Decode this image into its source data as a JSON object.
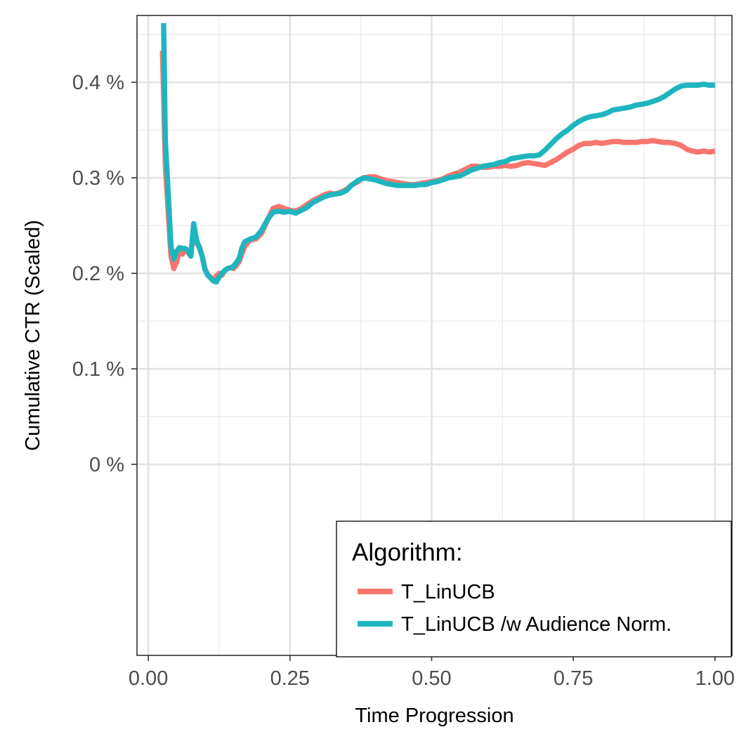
{
  "chart_data": {
    "type": "line",
    "title": "",
    "xlabel": "Time Progression",
    "ylabel": "Cumulative CTR (Scaled)",
    "xlim": [
      -0.02,
      1.03
    ],
    "ylim": [
      -0.002,
      0.0047
    ],
    "x_ticks": [
      0,
      0.25,
      0.5,
      0.75,
      1.0
    ],
    "x_tick_labels": [
      "0.00",
      "0.25",
      "0.50",
      "0.75",
      "1.00"
    ],
    "y_ticks": [
      0,
      0.001,
      0.002,
      0.003,
      0.004
    ],
    "y_tick_labels": [
      "0 %",
      "0.1 %",
      "0.2 %",
      "0.3 %",
      "0.4 %"
    ],
    "grid": true,
    "legend": {
      "title": "Algorithm:",
      "position": "bottom-right"
    },
    "series": [
      {
        "name": "T_LinUCB",
        "color": "#F8766D",
        "x": [
          0.025,
          0.03,
          0.035,
          0.04,
          0.045,
          0.05,
          0.055,
          0.06,
          0.065,
          0.07,
          0.075,
          0.08,
          0.085,
          0.09,
          0.095,
          0.1,
          0.105,
          0.11,
          0.115,
          0.12,
          0.125,
          0.13,
          0.135,
          0.14,
          0.145,
          0.15,
          0.155,
          0.16,
          0.165,
          0.17,
          0.18,
          0.19,
          0.2,
          0.21,
          0.22,
          0.23,
          0.24,
          0.25,
          0.26,
          0.27,
          0.28,
          0.29,
          0.3,
          0.31,
          0.32,
          0.33,
          0.34,
          0.35,
          0.36,
          0.37,
          0.38,
          0.39,
          0.4,
          0.41,
          0.42,
          0.43,
          0.44,
          0.45,
          0.46,
          0.47,
          0.48,
          0.49,
          0.5,
          0.51,
          0.52,
          0.53,
          0.54,
          0.55,
          0.56,
          0.57,
          0.58,
          0.59,
          0.6,
          0.61,
          0.62,
          0.63,
          0.64,
          0.65,
          0.66,
          0.67,
          0.68,
          0.69,
          0.7,
          0.71,
          0.72,
          0.73,
          0.74,
          0.75,
          0.76,
          0.77,
          0.78,
          0.79,
          0.8,
          0.81,
          0.82,
          0.83,
          0.84,
          0.85,
          0.86,
          0.87,
          0.88,
          0.89,
          0.9,
          0.91,
          0.92,
          0.93,
          0.94,
          0.95,
          0.96,
          0.97,
          0.98,
          0.99,
          1.0
        ],
        "values": [
          0.00433,
          0.00315,
          0.00265,
          0.00218,
          0.00205,
          0.00212,
          0.00225,
          0.0022,
          0.00225,
          0.00222,
          0.00218,
          0.00245,
          0.00232,
          0.00228,
          0.00218,
          0.00205,
          0.00198,
          0.00196,
          0.00193,
          0.00197,
          0.002,
          0.00198,
          0.00203,
          0.00205,
          0.00206,
          0.00205,
          0.00208,
          0.00212,
          0.0022,
          0.00228,
          0.00235,
          0.00236,
          0.00242,
          0.00255,
          0.00268,
          0.0027,
          0.00268,
          0.00266,
          0.00265,
          0.00268,
          0.00272,
          0.00276,
          0.00279,
          0.00282,
          0.00284,
          0.00283,
          0.00285,
          0.00288,
          0.00293,
          0.00296,
          0.003,
          0.00301,
          0.00301,
          0.00299,
          0.00297,
          0.00296,
          0.00295,
          0.00294,
          0.00293,
          0.00293,
          0.00294,
          0.00295,
          0.00296,
          0.00297,
          0.00299,
          0.00302,
          0.00304,
          0.00306,
          0.00309,
          0.00312,
          0.00312,
          0.00311,
          0.00311,
          0.00312,
          0.00312,
          0.00313,
          0.00312,
          0.00313,
          0.00315,
          0.00316,
          0.00315,
          0.00314,
          0.00313,
          0.00316,
          0.00319,
          0.00323,
          0.00327,
          0.0033,
          0.00334,
          0.00336,
          0.00336,
          0.00337,
          0.00336,
          0.00337,
          0.00338,
          0.00338,
          0.00337,
          0.00337,
          0.00337,
          0.00338,
          0.00338,
          0.00339,
          0.00338,
          0.00337,
          0.00337,
          0.00336,
          0.00334,
          0.0033,
          0.00328,
          0.00327,
          0.00328,
          0.00327,
          0.00328
        ]
      },
      {
        "name": "T_LinUCB /w Audience Norm.",
        "color": "#1FB5BF",
        "x": [
          0.027,
          0.03,
          0.035,
          0.04,
          0.045,
          0.05,
          0.055,
          0.06,
          0.065,
          0.07,
          0.075,
          0.08,
          0.085,
          0.09,
          0.095,
          0.1,
          0.105,
          0.11,
          0.115,
          0.12,
          0.125,
          0.13,
          0.135,
          0.14,
          0.145,
          0.15,
          0.155,
          0.16,
          0.165,
          0.17,
          0.18,
          0.19,
          0.2,
          0.21,
          0.22,
          0.23,
          0.24,
          0.25,
          0.26,
          0.27,
          0.28,
          0.29,
          0.3,
          0.31,
          0.32,
          0.33,
          0.34,
          0.35,
          0.36,
          0.37,
          0.38,
          0.39,
          0.4,
          0.41,
          0.42,
          0.43,
          0.44,
          0.45,
          0.46,
          0.47,
          0.48,
          0.49,
          0.5,
          0.51,
          0.52,
          0.53,
          0.54,
          0.55,
          0.56,
          0.57,
          0.58,
          0.59,
          0.6,
          0.61,
          0.62,
          0.63,
          0.64,
          0.65,
          0.66,
          0.67,
          0.68,
          0.69,
          0.7,
          0.71,
          0.72,
          0.73,
          0.74,
          0.75,
          0.76,
          0.77,
          0.78,
          0.79,
          0.8,
          0.81,
          0.82,
          0.83,
          0.84,
          0.85,
          0.86,
          0.87,
          0.88,
          0.89,
          0.9,
          0.91,
          0.92,
          0.93,
          0.94,
          0.95,
          0.96,
          0.97,
          0.98,
          0.99,
          1.0
        ],
        "values": [
          0.00462,
          0.0034,
          0.00285,
          0.00228,
          0.00215,
          0.00223,
          0.00227,
          0.00226,
          0.00226,
          0.00224,
          0.00218,
          0.00252,
          0.00235,
          0.00227,
          0.00218,
          0.00204,
          0.00198,
          0.00195,
          0.00192,
          0.00191,
          0.00196,
          0.002,
          0.00203,
          0.00205,
          0.00206,
          0.00207,
          0.00211,
          0.00215,
          0.00226,
          0.00233,
          0.00236,
          0.00238,
          0.00245,
          0.00256,
          0.00264,
          0.00265,
          0.00264,
          0.00265,
          0.00263,
          0.00266,
          0.00269,
          0.00274,
          0.00277,
          0.0028,
          0.00282,
          0.00283,
          0.00284,
          0.00287,
          0.00293,
          0.00297,
          0.003,
          0.00299,
          0.00298,
          0.00296,
          0.00294,
          0.00293,
          0.00292,
          0.00292,
          0.00292,
          0.00292,
          0.00293,
          0.00293,
          0.00295,
          0.00296,
          0.00298,
          0.003,
          0.00301,
          0.00302,
          0.00305,
          0.00308,
          0.0031,
          0.00312,
          0.00313,
          0.00314,
          0.00316,
          0.00317,
          0.0032,
          0.00321,
          0.00322,
          0.00323,
          0.00323,
          0.00324,
          0.00329,
          0.00335,
          0.00341,
          0.00346,
          0.0035,
          0.00355,
          0.00359,
          0.00362,
          0.00364,
          0.00365,
          0.00366,
          0.00368,
          0.00371,
          0.00372,
          0.00373,
          0.00374,
          0.00376,
          0.00377,
          0.00378,
          0.0038,
          0.00382,
          0.00385,
          0.00389,
          0.00393,
          0.00396,
          0.00397,
          0.00397,
          0.00397,
          0.00398,
          0.00397,
          0.00397
        ]
      }
    ]
  }
}
